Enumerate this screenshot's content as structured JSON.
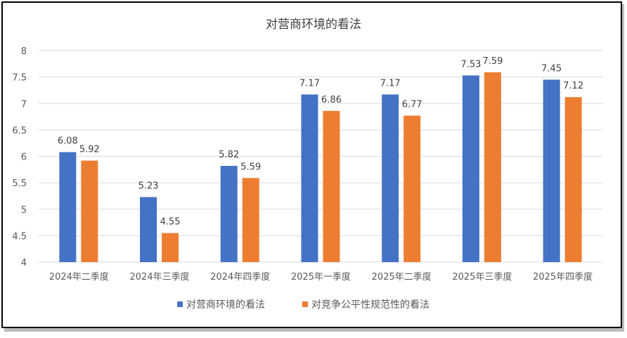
{
  "chart_data": {
    "type": "bar",
    "title": "对营商环境的看法",
    "categories": [
      "2024年二季度",
      "2024年三季度",
      "2024年四季度",
      "2025年一季度",
      "2025年二季度",
      "2025年三季度",
      "2025年四季度"
    ],
    "series": [
      {
        "name": "对营商环境的看法",
        "color": "#4472C4",
        "values": [
          6.08,
          5.23,
          5.82,
          7.17,
          7.17,
          7.53,
          7.45
        ]
      },
      {
        "name": "对竞争公平性规范性的看法",
        "color": "#ED7D31",
        "values": [
          5.92,
          4.55,
          5.59,
          6.86,
          6.77,
          7.59,
          7.12
        ]
      }
    ],
    "ylim": [
      4,
      8
    ],
    "yticks": [
      "4",
      "4.5",
      "5",
      "5.5",
      "6",
      "6.5",
      "7",
      "7.5",
      "8"
    ],
    "grid": true,
    "legend": "bottom",
    "xlabel": "",
    "ylabel": ""
  }
}
